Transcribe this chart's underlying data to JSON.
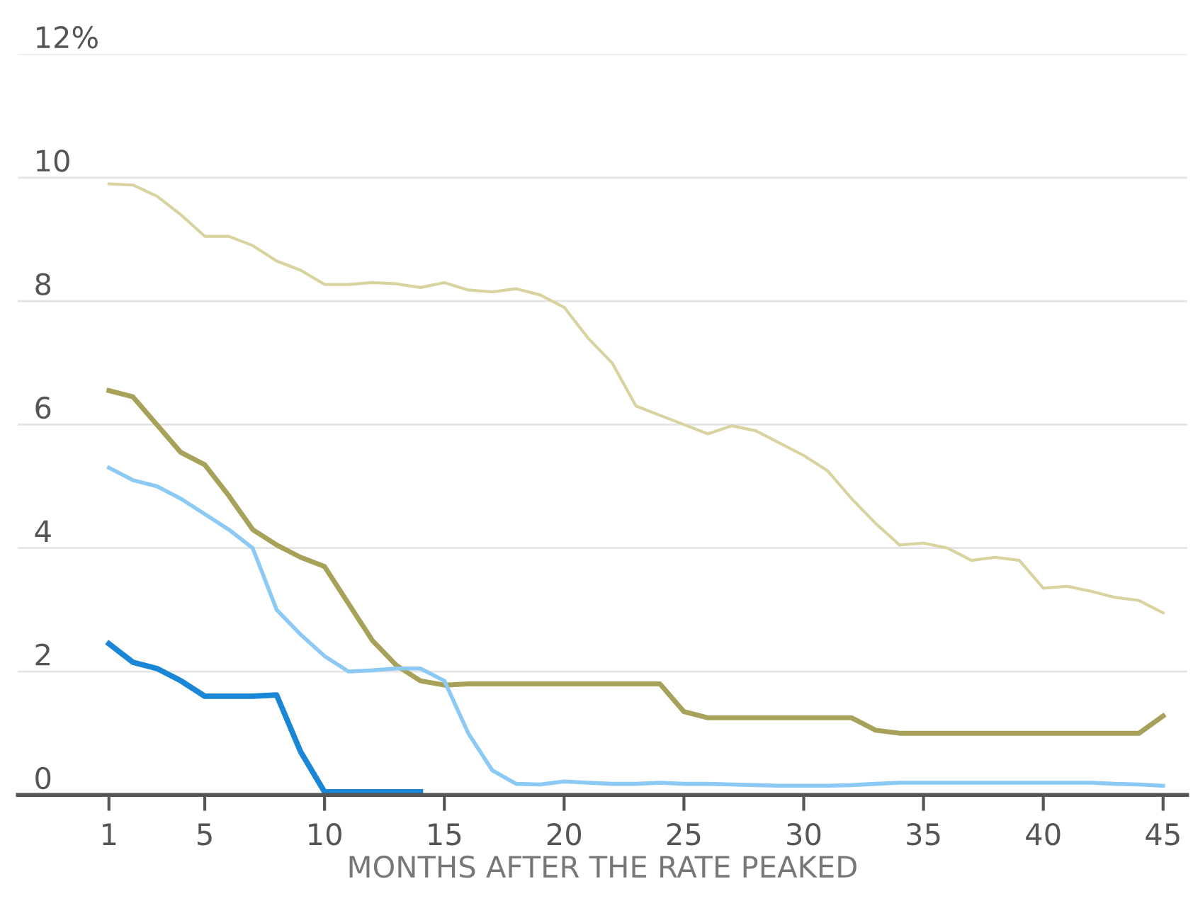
{
  "chart_data": {
    "type": "line",
    "xlabel": "MONTHS AFTER THE RATE PEAKED",
    "x": [
      1,
      2,
      3,
      4,
      5,
      6,
      7,
      8,
      9,
      10,
      11,
      12,
      13,
      14,
      15,
      16,
      17,
      18,
      19,
      20,
      21,
      22,
      23,
      24,
      25,
      26,
      27,
      28,
      29,
      30,
      31,
      32,
      33,
      34,
      35,
      36,
      37,
      38,
      39,
      40,
      41,
      42,
      43,
      44,
      45
    ],
    "series": [
      {
        "color": "#d9d3a0",
        "values": [
          9.9,
          9.88,
          9.7,
          9.4,
          9.05,
          9.05,
          8.9,
          8.65,
          8.5,
          8.27,
          8.27,
          8.3,
          8.28,
          8.22,
          8.3,
          8.18,
          8.15,
          8.2,
          8.1,
          7.9,
          7.4,
          7.0,
          6.3,
          6.15,
          6.0,
          5.85,
          5.98,
          5.9,
          5.7,
          5.5,
          5.25,
          4.8,
          4.4,
          4.05,
          4.08,
          4.0,
          3.8,
          3.85,
          3.8,
          3.35,
          3.38,
          3.3,
          3.2,
          3.15,
          2.95
        ]
      },
      {
        "color": "#a8a15a",
        "values": [
          6.55,
          6.45,
          6.0,
          5.55,
          5.35,
          4.85,
          4.3,
          4.05,
          3.85,
          3.7,
          3.1,
          2.5,
          2.1,
          1.85,
          1.78,
          1.8,
          1.8,
          1.8,
          1.8,
          1.8,
          1.8,
          1.8,
          1.8,
          1.8,
          1.35,
          1.25,
          1.25,
          1.25,
          1.25,
          1.25,
          1.25,
          1.25,
          1.05,
          1.0,
          1.0,
          1.0,
          1.0,
          1.0,
          1.0,
          1.0,
          1.0,
          1.0,
          1.0,
          1.0,
          1.28
        ]
      },
      {
        "color": "#8ccaf5",
        "values": [
          5.3,
          5.1,
          5.0,
          4.8,
          4.55,
          4.3,
          4.0,
          3.0,
          2.6,
          2.25,
          2.0,
          2.02,
          2.05,
          2.05,
          1.85,
          1.0,
          0.4,
          0.18,
          0.17,
          0.22,
          0.2,
          0.18,
          0.18,
          0.2,
          0.18,
          0.18,
          0.17,
          0.16,
          0.15,
          0.15,
          0.15,
          0.16,
          0.18,
          0.2,
          0.2,
          0.2,
          0.2,
          0.2,
          0.2,
          0.2,
          0.2,
          0.2,
          0.18,
          0.17,
          0.15
        ]
      },
      {
        "color": "#1a86d6",
        "values": [
          2.45,
          2.15,
          2.05,
          1.85,
          1.6,
          1.6,
          1.6,
          1.62,
          0.7,
          0.05,
          0.05,
          0.05,
          0.05,
          0.05,
          null,
          null,
          null,
          null,
          null,
          null,
          null,
          null,
          null,
          null,
          null,
          null,
          null,
          null,
          null,
          null,
          null,
          null,
          null,
          null,
          null,
          null,
          null,
          null,
          null,
          null,
          null,
          null,
          null,
          null,
          null
        ]
      }
    ],
    "xlim": [
      -2.8,
      46
    ],
    "ylim": [
      0,
      12
    ],
    "xticks": [
      1,
      5,
      10,
      15,
      20,
      25,
      30,
      35,
      40,
      45
    ],
    "yticks": [
      0,
      2,
      4,
      6,
      8,
      10,
      {
        "value": 12,
        "label": "12%"
      }
    ],
    "grid": "y",
    "legend": false,
    "marker": "none",
    "line_style": "solid"
  }
}
